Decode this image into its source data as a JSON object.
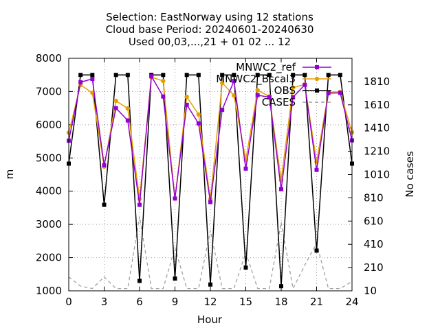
{
  "chart_data": {
    "type": "line",
    "title_lines": [
      "Selection: EastNorway using    12 stations",
      "Cloud base   Period: 20240601-20240630",
      "Used 00,03,...,21 + 01 02 ... 12"
    ],
    "xlabel": "Hour",
    "ylabel": "m",
    "y2label": "No cases",
    "xlim": [
      0,
      24
    ],
    "ylim": [
      1000,
      8000
    ],
    "y2lim": [
      10,
      2010
    ],
    "x_ticks": [
      0,
      3,
      6,
      9,
      12,
      15,
      18,
      21,
      24
    ],
    "y_ticks": [
      1000,
      2000,
      3000,
      4000,
      5000,
      6000,
      7000,
      8000
    ],
    "y2_ticks": [
      10,
      210,
      410,
      610,
      810,
      1010,
      1210,
      1410,
      1610,
      1810
    ],
    "grid": true,
    "legend_position": "top-right",
    "x": [
      0,
      1,
      2,
      3,
      4,
      5,
      6,
      7,
      8,
      9,
      10,
      11,
      12,
      13,
      14,
      15,
      16,
      17,
      18,
      19,
      20,
      21,
      22,
      23,
      24
    ],
    "series": [
      {
        "name": "MNWC2_ref",
        "color": "#9400d3",
        "marker": "filled-square",
        "axis": "y1",
        "values": [
          5520,
          7280,
          7380,
          4780,
          6500,
          6130,
          3590,
          7460,
          6850,
          3780,
          6600,
          6040,
          3670,
          6450,
          7320,
          4680,
          6890,
          6830,
          4060,
          6830,
          7200,
          4640,
          6950,
          6960,
          5530
        ]
      },
      {
        "name": "MNWC2_Bscal3",
        "color": "#e69f00",
        "marker": "filled-circle",
        "axis": "y1",
        "values": [
          5760,
          7200,
          6960,
          4740,
          6720,
          6490,
          3770,
          7430,
          7320,
          3780,
          6840,
          6310,
          3760,
          7260,
          6880,
          4940,
          7040,
          6850,
          4330,
          7120,
          7210,
          4880,
          6980,
          6990,
          5770
        ]
      },
      {
        "name": "OBS",
        "color": "#000000",
        "marker": "filled-square",
        "axis": "y1",
        "values": [
          4830,
          7500,
          7500,
          3590,
          7500,
          7500,
          1300,
          7500,
          7500,
          1370,
          7500,
          7500,
          1190,
          7500,
          7500,
          1700,
          7500,
          7500,
          1140,
          7500,
          7500,
          2210,
          7500,
          7500,
          4830
        ]
      },
      {
        "name": "CASES",
        "color": "#a0a0a0",
        "style": "dashed",
        "axis": "y2",
        "values": [
          130,
          50,
          30,
          130,
          30,
          30,
          650,
          30,
          30,
          380,
          30,
          30,
          530,
          30,
          30,
          340,
          30,
          30,
          600,
          30,
          230,
          420,
          30,
          30,
          90
        ]
      }
    ]
  }
}
